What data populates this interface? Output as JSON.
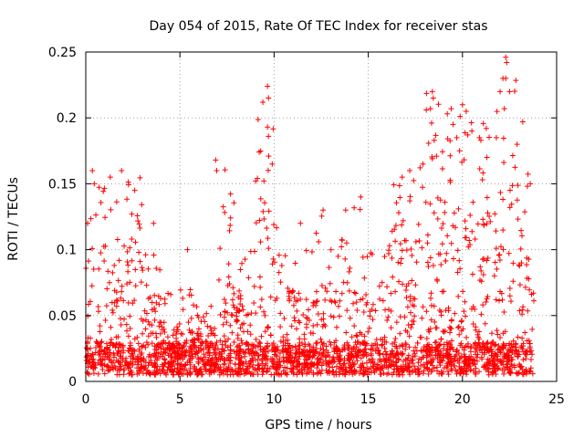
{
  "chart_data": {
    "type": "scatter",
    "title": "Day 054 of 2015, Rate Of TEC Index for receiver stas",
    "xlabel": "GPS time / hours",
    "ylabel": "ROTI / TECUs",
    "xlim": [
      0,
      25
    ],
    "ylim": [
      0,
      0.25
    ],
    "xticks": [
      0,
      5,
      10,
      15,
      20,
      25
    ],
    "xtick_labels": [
      "0",
      "5",
      "10",
      "15",
      "20",
      "25"
    ],
    "yticks": [
      0,
      0.05,
      0.1,
      0.15,
      0.2,
      0.25
    ],
    "ytick_labels": [
      "0",
      "0.05",
      "0.1",
      "0.15",
      "0.2",
      "0.25"
    ],
    "grid": true,
    "marker": "+",
    "color": "#ff0000",
    "series": [
      {
        "name": "ROTI",
        "x_range": [
          0,
          23.8
        ],
        "baseline_range": [
          0.005,
          0.03
        ],
        "hourly_envelope_max": [
          0.15,
          0.14,
          0.16,
          0.1,
          0.07,
          0.1,
          0.06,
          0.17,
          0.1,
          0.22,
          0.12,
          0.1,
          0.13,
          0.12,
          0.14,
          0.1,
          0.15,
          0.17,
          0.22,
          0.21,
          0.2,
          0.21,
          0.245,
          0.16
        ],
        "points": [
          [
            0.1,
            0.12
          ],
          [
            0.35,
            0.16
          ],
          [
            0.45,
            0.15
          ],
          [
            1.3,
            0.155
          ],
          [
            1.9,
            0.16
          ],
          [
            2.6,
            0.145
          ],
          [
            3.6,
            0.12
          ],
          [
            5.4,
            0.1
          ],
          [
            6.9,
            0.168
          ],
          [
            6.95,
            0.16
          ],
          [
            9.65,
            0.224
          ],
          [
            9.7,
            0.215
          ],
          [
            9.65,
            0.193
          ],
          [
            9.7,
            0.186
          ],
          [
            9.9,
            0.165
          ],
          [
            11.4,
            0.12
          ],
          [
            12.6,
            0.13
          ],
          [
            13.8,
            0.13
          ],
          [
            14.6,
            0.14
          ],
          [
            16.8,
            0.155
          ],
          [
            17.2,
            0.16
          ],
          [
            17.9,
            0.165
          ],
          [
            18.4,
            0.22
          ],
          [
            18.45,
            0.215
          ],
          [
            18.3,
            0.207
          ],
          [
            18.5,
            0.183
          ],
          [
            19.4,
            0.207
          ],
          [
            19.5,
            0.195
          ],
          [
            19.7,
            0.185
          ],
          [
            20.0,
            0.21
          ],
          [
            20.2,
            0.205
          ],
          [
            20.5,
            0.19
          ],
          [
            20.9,
            0.185
          ],
          [
            21.3,
            0.17
          ],
          [
            21.8,
            0.185
          ],
          [
            22.0,
            0.22
          ],
          [
            22.15,
            0.23
          ],
          [
            22.3,
            0.246
          ],
          [
            22.35,
            0.242
          ],
          [
            22.3,
            0.23
          ],
          [
            22.5,
            0.22
          ],
          [
            22.9,
            0.18
          ],
          [
            23.2,
            0.197
          ],
          [
            23.6,
            0.15
          ]
        ]
      }
    ]
  }
}
